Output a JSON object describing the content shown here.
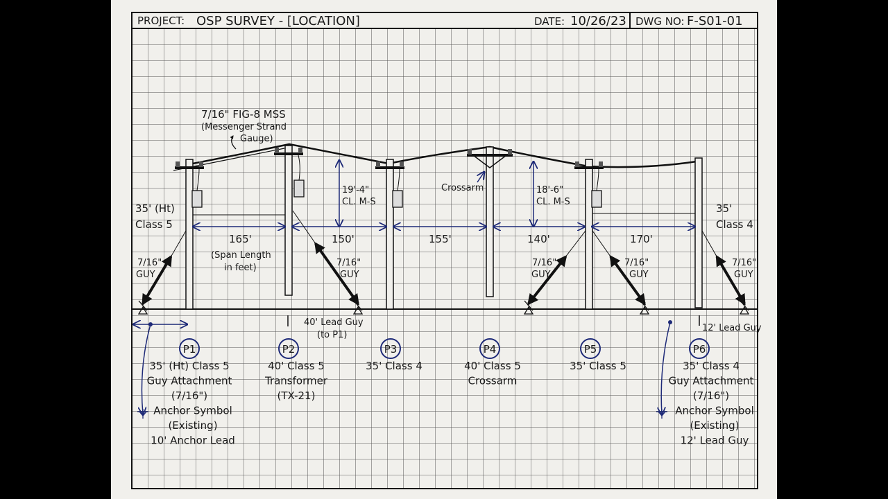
{
  "header": {
    "project_label": "PROJECT:",
    "project_value": "OSP SURVEY - [LOCATION]",
    "date_label": "DATE:",
    "date_value": "10/26/23",
    "dwg_label": "DWG NO:",
    "dwg_value": "F-S01-01"
  },
  "strand": {
    "line1": "7/16\" FIG-8 MSS",
    "line2": "(Messenger Strand",
    "line3": "Gauge)"
  },
  "left_pole_note": {
    "line1": "35' (Ht)",
    "line2": "Class 5"
  },
  "right_pole_note": {
    "line1": "35'",
    "line2": "Class 4"
  },
  "spans": [
    {
      "length": "165'"
    },
    {
      "length": "150'"
    },
    {
      "length": "155'"
    },
    {
      "length": "140'"
    },
    {
      "length": "170'"
    }
  ],
  "span_note": {
    "line1": "(Span Length",
    "line2": "in feet)"
  },
  "clearances": [
    {
      "value": "19'-4\"",
      "label": "CL. M-S"
    },
    {
      "value": "18'-6\"",
      "label": "CL. M-S"
    }
  ],
  "crossarm_label": "Crossarm",
  "guys": [
    {
      "size": "7/16\"",
      "label": "GUY"
    },
    {
      "size": "7/16\"",
      "label": "GUY"
    },
    {
      "size": "7/16\"",
      "label": "GUY"
    },
    {
      "size": "7/16\"",
      "label": "GUY"
    },
    {
      "size": "7/16\"",
      "label": "GUY"
    }
  ],
  "lead_guy_p2": {
    "line1": "40' Lead Guy",
    "line2": "(to P1)"
  },
  "lead_guy_p6": "12' Lead Guy",
  "poles": [
    {
      "id": "P1",
      "lines": [
        "35' (Ht) Class 5",
        "Guy Attachment",
        "(7/16\")",
        "Anchor Symbol",
        "(Existing)",
        "10' Anchor Lead"
      ]
    },
    {
      "id": "P2",
      "lines": [
        "40' Class 5",
        "Transformer",
        "(TX-21)"
      ]
    },
    {
      "id": "P3",
      "lines": [
        "35' Class 4"
      ]
    },
    {
      "id": "P4",
      "lines": [
        "40' Class 5",
        "Crossarm"
      ]
    },
    {
      "id": "P5",
      "lines": [
        "35' Class 5"
      ]
    },
    {
      "id": "P6",
      "lines": [
        "35' Class 4",
        "Guy Attachment",
        "(7/16\")",
        "Anchor Symbol",
        "(Existing)",
        "12' Lead Guy"
      ]
    }
  ],
  "colors": {
    "paper": "#f1f0ec",
    "grid": "#4a4a4a",
    "ink": "#1a1a1a",
    "dimension_ink": "#1e2a78",
    "background": "#000000"
  }
}
